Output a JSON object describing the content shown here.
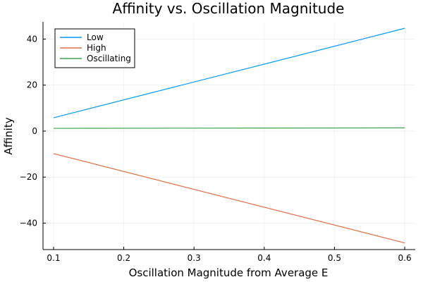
{
  "chart_data": {
    "type": "line",
    "title": "Affinity vs. Oscillation Magnitude",
    "xlabel": "Oscillation Magnitude from Average E",
    "ylabel": "Affinity",
    "xlim": [
      0.085,
      0.615
    ],
    "ylim": [
      -51.5,
      47.5
    ],
    "xticks": [
      0.1,
      0.2,
      0.3,
      0.4,
      0.5,
      0.6
    ],
    "xtick_labels": [
      "0.1",
      "0.2",
      "0.3",
      "0.4",
      "0.5",
      "0.6"
    ],
    "yticks": [
      -40,
      -20,
      0,
      20,
      40
    ],
    "ytick_labels": [
      "−40",
      "−20",
      "0",
      "20",
      "40"
    ],
    "grid": true,
    "legend_position": "top-left",
    "x": [
      0.1,
      0.6
    ],
    "series": [
      {
        "name": "Low",
        "color": "#009AFA",
        "values": [
          5.8,
          44.7
        ]
      },
      {
        "name": "High",
        "color": "#E26F46",
        "values": [
          -9.8,
          -48.6
        ]
      },
      {
        "name": "Oscillating",
        "color": "#3DA44D",
        "values": [
          1.2,
          1.4
        ]
      }
    ]
  }
}
